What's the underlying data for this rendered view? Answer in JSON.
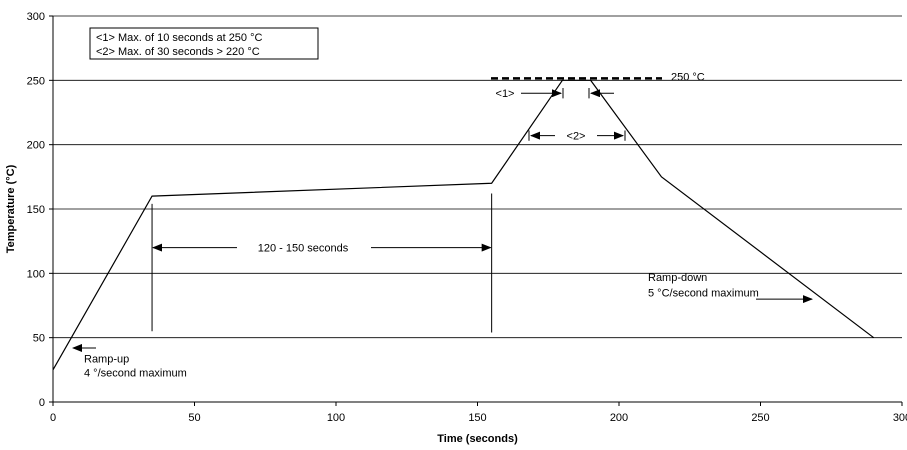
{
  "chart_data": {
    "type": "line",
    "xlabel": "Time  (seconds)",
    "ylabel": "Temperature  (°C)",
    "xlim": [
      0,
      300
    ],
    "ylim": [
      0,
      300
    ],
    "xticks": [
      0,
      50,
      100,
      150,
      200,
      250,
      300
    ],
    "yticks": [
      0,
      50,
      100,
      150,
      200,
      250,
      300
    ],
    "grid": "horizontal",
    "series": [
      {
        "x": [
          0,
          35,
          155,
          180,
          190,
          215,
          290
        ],
        "y": [
          25,
          160,
          170,
          250,
          250,
          175,
          50
        ]
      }
    ],
    "reference_line": {
      "y": 250,
      "label": "250 °C"
    },
    "legend_box": {
      "lines": [
        "<1> Max. of 10 seconds at 250 °C",
        "<2> Max. of 30 seconds > 220 °C"
      ]
    },
    "annotations": {
      "preheat": {
        "x_start": 35,
        "x_end": 155,
        "text": "120 - 150 seconds"
      },
      "marker1": {
        "text": "<1>"
      },
      "marker2": {
        "text": "<2>"
      },
      "ramp_up": {
        "line1": "Ramp-up",
        "line2": "4 °/second maximum"
      },
      "ramp_down": {
        "line1": "Ramp-down",
        "line2": "5 °C/second maximum"
      }
    }
  }
}
